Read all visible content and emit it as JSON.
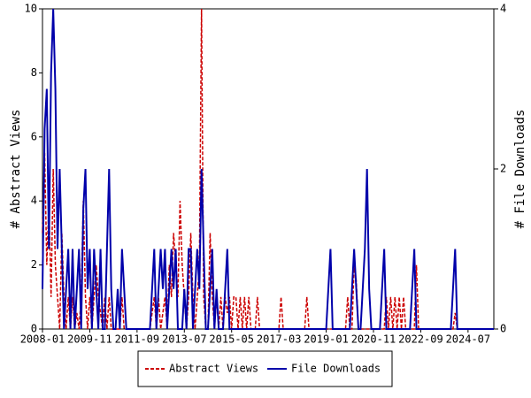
{
  "chart_data": {
    "type": "line",
    "x": [
      "2008-01",
      "2008-02",
      "2008-03",
      "2008-04",
      "2008-05",
      "2008-06",
      "2008-07",
      "2008-08",
      "2008-09",
      "2008-10",
      "2008-11",
      "2008-12",
      "2009-01",
      "2009-02",
      "2009-03",
      "2009-04",
      "2009-05",
      "2009-06",
      "2009-07",
      "2009-08",
      "2009-09",
      "2009-10",
      "2009-11",
      "2009-12",
      "2010-01",
      "2010-02",
      "2010-03",
      "2010-04",
      "2010-05",
      "2010-06",
      "2010-07",
      "2010-08",
      "2010-09",
      "2010-10",
      "2010-11",
      "2010-12",
      "2011-01",
      "2011-02",
      "2011-03",
      "2011-04",
      "2011-05",
      "2011-06",
      "2011-07",
      "2011-08",
      "2011-09",
      "2011-10",
      "2011-11",
      "2011-12",
      "2012-01",
      "2012-02",
      "2012-03",
      "2012-04",
      "2012-05",
      "2012-06",
      "2012-07",
      "2012-08",
      "2012-09",
      "2012-10",
      "2012-11",
      "2012-12",
      "2013-01",
      "2013-02",
      "2013-03",
      "2013-04",
      "2013-05",
      "2013-06",
      "2013-07",
      "2013-08",
      "2013-09",
      "2013-10",
      "2013-11",
      "2013-12",
      "2014-01",
      "2014-02",
      "2014-03",
      "2014-04",
      "2014-05",
      "2014-06",
      "2014-07",
      "2014-08",
      "2014-09",
      "2014-10",
      "2014-11",
      "2014-12",
      "2015-01",
      "2015-02",
      "2015-03",
      "2015-04",
      "2015-05",
      "2015-06",
      "2015-07",
      "2015-08",
      "2015-09",
      "2015-10",
      "2015-11",
      "2015-12",
      "2016-01",
      "2016-02",
      "2016-03",
      "2016-04",
      "2016-05",
      "2016-06",
      "2016-07",
      "2016-08",
      "2016-09",
      "2016-10",
      "2016-11",
      "2016-12",
      "2017-01",
      "2017-02",
      "2017-03",
      "2017-04",
      "2017-05",
      "2017-06",
      "2017-07",
      "2017-08",
      "2017-09",
      "2017-10",
      "2017-11",
      "2017-12",
      "2018-01",
      "2018-02",
      "2018-03",
      "2018-04",
      "2018-05",
      "2018-06",
      "2018-07",
      "2018-08",
      "2018-09",
      "2018-10",
      "2018-11",
      "2018-12",
      "2019-01",
      "2019-02",
      "2019-03",
      "2019-04",
      "2019-05",
      "2019-06",
      "2019-07",
      "2019-08",
      "2019-09",
      "2019-10",
      "2019-11",
      "2019-12",
      "2020-01",
      "2020-02",
      "2020-03",
      "2020-04",
      "2020-05",
      "2020-06",
      "2020-07",
      "2020-08",
      "2020-09",
      "2020-10",
      "2020-11",
      "2020-12",
      "2021-01",
      "2021-02",
      "2021-03",
      "2021-04",
      "2021-05",
      "2021-06",
      "2021-07",
      "2021-08",
      "2021-09",
      "2021-10",
      "2021-11",
      "2021-12",
      "2022-01",
      "2022-02",
      "2022-03",
      "2022-04",
      "2022-05",
      "2022-06",
      "2022-07",
      "2022-08",
      "2022-09",
      "2022-10",
      "2022-11",
      "2022-12",
      "2023-01",
      "2023-02",
      "2023-03",
      "2023-04",
      "2023-05",
      "2023-06",
      "2023-07",
      "2023-08",
      "2023-09",
      "2023-10",
      "2023-11",
      "2023-12",
      "2024-01",
      "2024-02",
      "2024-03",
      "2024-04",
      "2024-05",
      "2024-06",
      "2024-07",
      "2024-08",
      "2024-09",
      "2024-10",
      "2024-11",
      "2024-12",
      "2025-01",
      "2025-02",
      "2025-03",
      "2025-04",
      "2025-05",
      "2025-06",
      "2025-07"
    ],
    "xticks": [
      "2008-01",
      "2009-11",
      "2011-09",
      "2013-07",
      "2015-05",
      "2017-03",
      "2019-01",
      "2020-11",
      "2022-09",
      "2024-07"
    ],
    "ylabel": "# Abstract Views",
    "y2label": "# File Downloads",
    "ylim": [
      0,
      10
    ],
    "yticks": [
      0,
      2,
      4,
      6,
      8,
      10
    ],
    "y2lim": [
      0,
      4
    ],
    "y2ticks": [
      0,
      2,
      4
    ],
    "series": [
      {
        "name": "Abstract Views",
        "color": "#cc0000",
        "dash": true,
        "values": [
          3,
          5.5,
          2,
          4,
          1,
          5,
          2,
          1,
          0,
          3,
          1,
          0,
          1,
          0,
          1,
          0,
          0.5,
          0,
          1,
          4,
          1,
          0,
          1,
          0,
          1,
          2,
          1,
          0.5,
          0,
          1,
          0,
          1,
          0,
          0,
          0,
          0,
          0,
          1,
          0,
          0,
          0,
          0,
          0,
          0,
          0,
          0,
          0,
          0,
          0,
          0,
          0,
          0.5,
          1,
          0,
          1,
          0,
          0.5,
          1,
          0,
          2,
          1,
          3,
          2,
          1,
          4,
          2,
          1,
          0,
          1,
          3,
          1,
          0,
          1,
          2,
          10,
          1,
          0,
          0,
          3,
          1,
          0,
          1,
          0,
          1,
          0,
          1,
          0.5,
          1,
          0,
          1,
          1,
          0,
          1,
          0,
          1,
          0,
          1,
          0,
          0,
          0,
          1,
          0,
          0,
          0,
          0,
          0,
          0,
          0,
          0,
          0,
          0,
          1,
          0,
          0,
          0,
          0,
          0,
          0,
          0,
          0,
          0,
          0,
          0,
          1,
          0,
          0,
          0,
          0,
          0,
          0,
          0,
          0,
          0,
          0,
          0,
          0,
          0,
          0,
          0,
          0,
          0,
          0,
          1,
          0,
          0,
          2,
          1.5,
          0,
          0,
          0,
          0,
          0,
          0,
          0,
          0,
          0,
          0,
          0,
          0,
          0,
          1,
          0,
          1,
          0,
          1,
          0,
          1,
          0,
          1,
          0,
          0,
          0,
          0,
          0,
          2,
          0,
          0,
          0,
          0,
          0,
          0,
          0,
          0,
          0,
          0,
          0,
          0,
          0,
          0,
          0,
          0,
          0,
          0.5,
          0,
          0,
          0,
          0,
          0,
          0,
          0,
          0,
          0,
          0,
          0,
          0,
          0,
          0,
          0,
          0,
          0,
          0
        ]
      },
      {
        "name": "File Downloads",
        "color": "#0000aa",
        "axis": "y2",
        "values": [
          0.5,
          2.5,
          3,
          1,
          3.2,
          4,
          3,
          1,
          2,
          1,
          0,
          0.5,
          1,
          0,
          1,
          0,
          0.5,
          1,
          0,
          1.5,
          2,
          0.5,
          1,
          0,
          1,
          0.5,
          0,
          1,
          0,
          0,
          1,
          2,
          0.5,
          0,
          0,
          0.5,
          0,
          1,
          0.5,
          0,
          0,
          0,
          0,
          0,
          0,
          0,
          0,
          0,
          0,
          0,
          0,
          0.5,
          1,
          0,
          0.5,
          1,
          0.5,
          1,
          0,
          0.5,
          1,
          0.5,
          1,
          0,
          0,
          0,
          0.5,
          0,
          1,
          1,
          0,
          0.5,
          1,
          0.5,
          2,
          1,
          0,
          0,
          0.5,
          1,
          0,
          0.5,
          0,
          0,
          0,
          0.5,
          1,
          0,
          0,
          0,
          0,
          0,
          0,
          0,
          0,
          0,
          0,
          0,
          0,
          0,
          0,
          0,
          0,
          0,
          0,
          0,
          0,
          0,
          0,
          0,
          0,
          0,
          0,
          0,
          0,
          0,
          0,
          0,
          0,
          0,
          0,
          0,
          0,
          0,
          0,
          0,
          0,
          0,
          0,
          0,
          0,
          0,
          0,
          0.5,
          1,
          0,
          0,
          0,
          0,
          0,
          0,
          0,
          0,
          0,
          0.5,
          1,
          0.5,
          0,
          0,
          0.5,
          1,
          2,
          0.5,
          0,
          0,
          0,
          0,
          0,
          0.5,
          1,
          0,
          0,
          0,
          0,
          0,
          0,
          0,
          0,
          0,
          0,
          0,
          0,
          0.5,
          1,
          0,
          0,
          0,
          0,
          0,
          0,
          0,
          0,
          0,
          0,
          0,
          0,
          0,
          0,
          0,
          0,
          0,
          0.5,
          1,
          0,
          0,
          0,
          0,
          0,
          0,
          0,
          0,
          0,
          0,
          0,
          0,
          0,
          0,
          0,
          0,
          0,
          0
        ]
      }
    ]
  }
}
